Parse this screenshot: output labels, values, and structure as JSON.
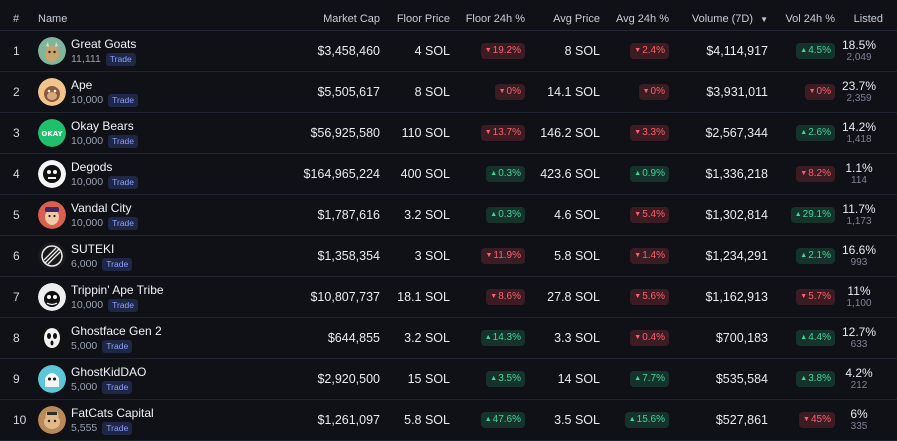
{
  "columns": {
    "rank": "#",
    "name": "Name",
    "market_cap": "Market Cap",
    "floor_price": "Floor Price",
    "floor_24h": "Floor 24h %",
    "avg_price": "Avg Price",
    "avg_24h": "Avg 24h %",
    "volume_7d": "Volume (7D)",
    "vol_24h": "Vol 24h %",
    "listed": "Listed"
  },
  "sort_icon": "caret-down-icon",
  "colors": {
    "up": "#46d39a",
    "down": "#ff5f6d",
    "trade": "#8ea0ff"
  },
  "rows": [
    {
      "rank": "1",
      "name": "Great Goats",
      "supply": "11,111",
      "trade": "Trade",
      "market_cap": "$3,458,460",
      "floor": "4 SOL",
      "floor_chg": "19.2%",
      "floor_dir": "down",
      "avg": "8 SOL",
      "avg_chg": "2.4%",
      "avg_dir": "down",
      "volume": "$4,114,917",
      "vol_chg": "4.5%",
      "vol_dir": "up",
      "listed_pct": "18.5%",
      "listed_count": "2,049",
      "avatar": "goat-avatar",
      "avatar_bg": "#7fb59a"
    },
    {
      "rank": "2",
      "name": "Ape",
      "supply": "10,000",
      "trade": "Trade",
      "market_cap": "$5,505,617",
      "floor": "8 SOL",
      "floor_chg": "0%",
      "floor_dir": "down",
      "avg": "14.1 SOL",
      "avg_chg": "0%",
      "avg_dir": "down",
      "volume": "$3,931,011",
      "vol_chg": "0%",
      "vol_dir": "down",
      "listed_pct": "23.7%",
      "listed_count": "2,359",
      "avatar": "ape-avatar",
      "avatar_bg": "#f1c48e"
    },
    {
      "rank": "3",
      "name": "Okay Bears",
      "supply": "10,000",
      "trade": "Trade",
      "market_cap": "$56,925,580",
      "floor": "110 SOL",
      "floor_chg": "13.7%",
      "floor_dir": "down",
      "avg": "146.2 SOL",
      "avg_chg": "3.3%",
      "avg_dir": "down",
      "volume": "$2,567,344",
      "vol_chg": "2.6%",
      "vol_dir": "up",
      "listed_pct": "14.2%",
      "listed_count": "1,418",
      "avatar": "okay-bears-avatar",
      "avatar_bg": "#1fbf6b",
      "avatar_text": "OKAY"
    },
    {
      "rank": "4",
      "name": "Degods",
      "supply": "10,000",
      "trade": "Trade",
      "market_cap": "$164,965,224",
      "floor": "400 SOL",
      "floor_chg": "0.3%",
      "floor_dir": "up",
      "avg": "423.6 SOL",
      "avg_chg": "0.9%",
      "avg_dir": "up",
      "volume": "$1,336,218",
      "vol_chg": "8.2%",
      "vol_dir": "down",
      "listed_pct": "1.1%",
      "listed_count": "114",
      "avatar": "degods-avatar",
      "avatar_bg": "#f5f5f5"
    },
    {
      "rank": "5",
      "name": "Vandal City",
      "supply": "10,000",
      "trade": "Trade",
      "market_cap": "$1,787,616",
      "floor": "3.2 SOL",
      "floor_chg": "0.3%",
      "floor_dir": "up",
      "avg": "4.6 SOL",
      "avg_chg": "5.4%",
      "avg_dir": "down",
      "volume": "$1,302,814",
      "vol_chg": "29.1%",
      "vol_dir": "up",
      "listed_pct": "11.7%",
      "listed_count": "1,173",
      "avatar": "vandal-avatar",
      "avatar_bg": "#d9604f"
    },
    {
      "rank": "6",
      "name": "SUTEKI",
      "supply": "6,000",
      "trade": "Trade",
      "market_cap": "$1,358,354",
      "floor": "3 SOL",
      "floor_chg": "11.9%",
      "floor_dir": "down",
      "avg": "5.8 SOL",
      "avg_chg": "1.4%",
      "avg_dir": "down",
      "volume": "$1,234,291",
      "vol_chg": "2.1%",
      "vol_dir": "up",
      "listed_pct": "16.6%",
      "listed_count": "993",
      "avatar": "suteki-avatar",
      "avatar_bg": "#1a1a1a"
    },
    {
      "rank": "7",
      "name": "Trippin' Ape Tribe",
      "supply": "10,000",
      "trade": "Trade",
      "market_cap": "$10,807,737",
      "floor": "18.1 SOL",
      "floor_chg": "8.6%",
      "floor_dir": "down",
      "avg": "27.8 SOL",
      "avg_chg": "5.6%",
      "avg_dir": "down",
      "volume": "$1,162,913",
      "vol_chg": "5.7%",
      "vol_dir": "down",
      "listed_pct": "11%",
      "listed_count": "1,100",
      "avatar": "tribe-avatar",
      "avatar_bg": "#eeeeee"
    },
    {
      "rank": "8",
      "name": "Ghostface Gen 2",
      "supply": "5,000",
      "trade": "Trade",
      "market_cap": "$644,855",
      "floor": "3.2 SOL",
      "floor_chg": "14.3%",
      "floor_dir": "up",
      "avg": "3.3 SOL",
      "avg_chg": "0.4%",
      "avg_dir": "down",
      "volume": "$700,183",
      "vol_chg": "4.4%",
      "vol_dir": "up",
      "listed_pct": "12.7%",
      "listed_count": "633",
      "avatar": "ghostface-avatar",
      "avatar_bg": "#111111"
    },
    {
      "rank": "9",
      "name": "GhostKidDAO",
      "supply": "5,000",
      "trade": "Trade",
      "market_cap": "$2,920,500",
      "floor": "15 SOL",
      "floor_chg": "3.5%",
      "floor_dir": "up",
      "avg": "14 SOL",
      "avg_chg": "7.7%",
      "avg_dir": "up",
      "volume": "$535,584",
      "vol_chg": "3.8%",
      "vol_dir": "up",
      "listed_pct": "4.2%",
      "listed_count": "212",
      "avatar": "ghostkid-avatar",
      "avatar_bg": "#5bc7d8"
    },
    {
      "rank": "10",
      "name": "FatCats Capital",
      "supply": "5,555",
      "trade": "Trade",
      "market_cap": "$1,261,097",
      "floor": "5.8 SOL",
      "floor_chg": "47.6%",
      "floor_dir": "up",
      "avg": "3.5 SOL",
      "avg_chg": "15.6%",
      "avg_dir": "up",
      "volume": "$527,861",
      "vol_chg": "45%",
      "vol_dir": "down",
      "listed_pct": "6%",
      "listed_count": "335",
      "avatar": "fatcats-avatar",
      "avatar_bg": "#b88a5a"
    }
  ]
}
